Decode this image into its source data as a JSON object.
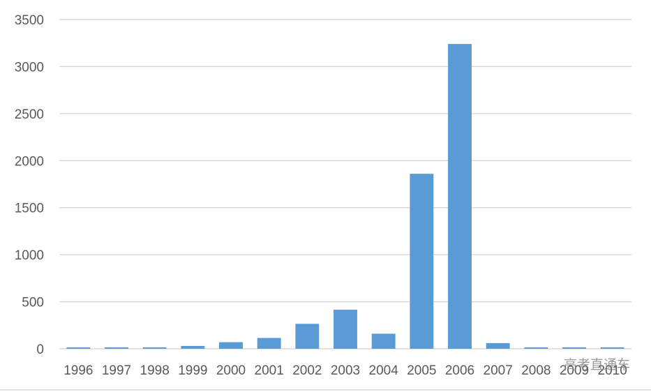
{
  "chart_data": {
    "type": "bar",
    "categories": [
      "1996",
      "1997",
      "1998",
      "1999",
      "2000",
      "2001",
      "2002",
      "2003",
      "2004",
      "2005",
      "2006",
      "2007",
      "2008",
      "2009",
      "2010"
    ],
    "values": [
      15,
      15,
      15,
      30,
      70,
      115,
      265,
      415,
      160,
      1860,
      3240,
      60,
      15,
      15,
      15
    ],
    "title": "",
    "xlabel": "",
    "ylabel": "",
    "ylim": [
      0,
      3500
    ],
    "yticks": [
      0,
      500,
      1000,
      1500,
      2000,
      2500,
      3000,
      3500
    ],
    "grid": true,
    "bar_color": "#5b9bd5"
  },
  "watermark": "高考直通车"
}
